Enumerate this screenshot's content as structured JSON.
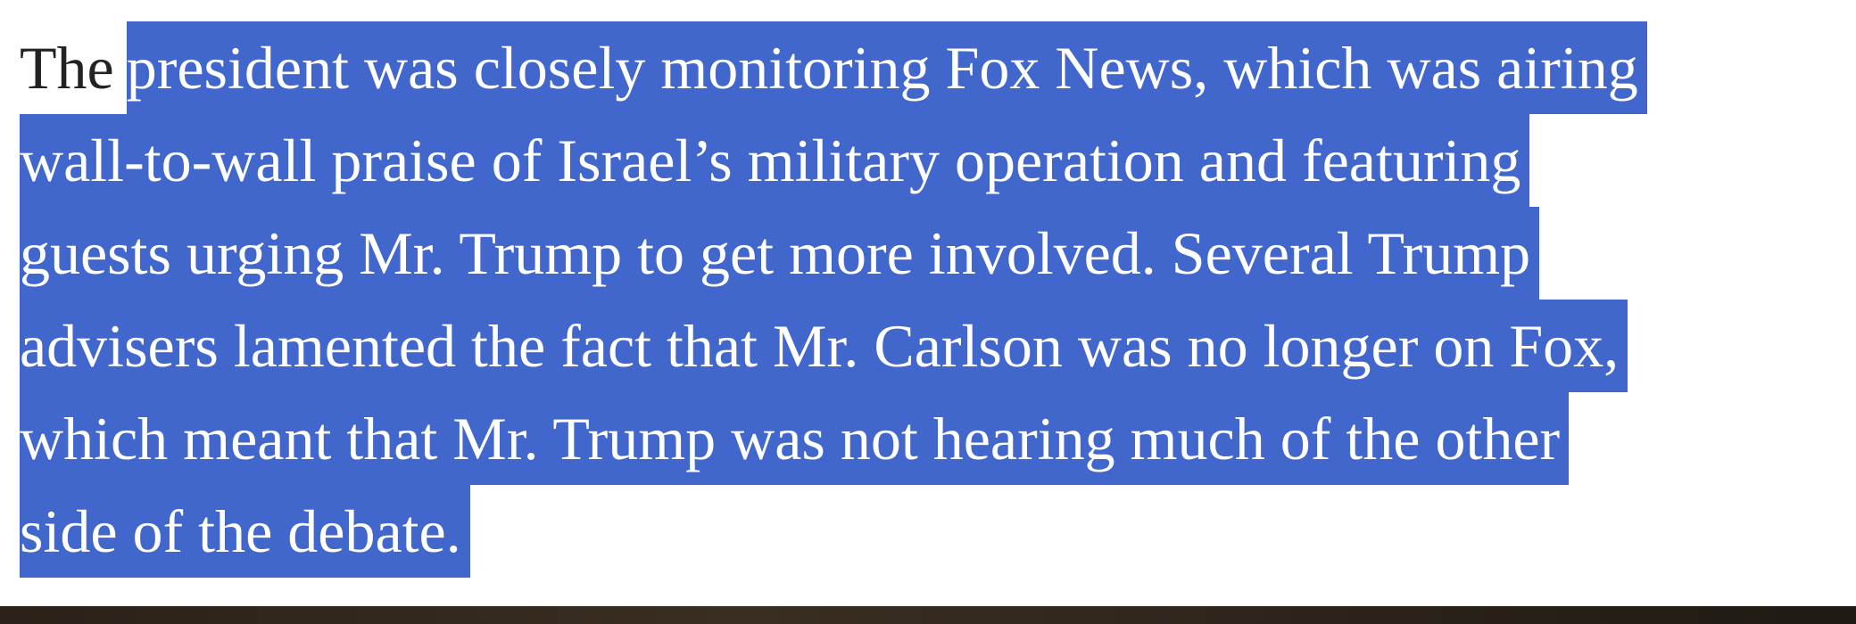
{
  "paragraph": {
    "unselected": "The",
    "lines": [
      "president was closely monitoring Fox News, which was airing",
      "wall-to-wall praise of Israel’s military operation and featuring",
      "guests urging Mr. Trump to get more involved. Several Trump",
      "advisers lamented the fact that Mr. Carlson was no longer on Fox,",
      "which meant that Mr. Trump was not hearing much of the other",
      "side of the debate."
    ]
  }
}
